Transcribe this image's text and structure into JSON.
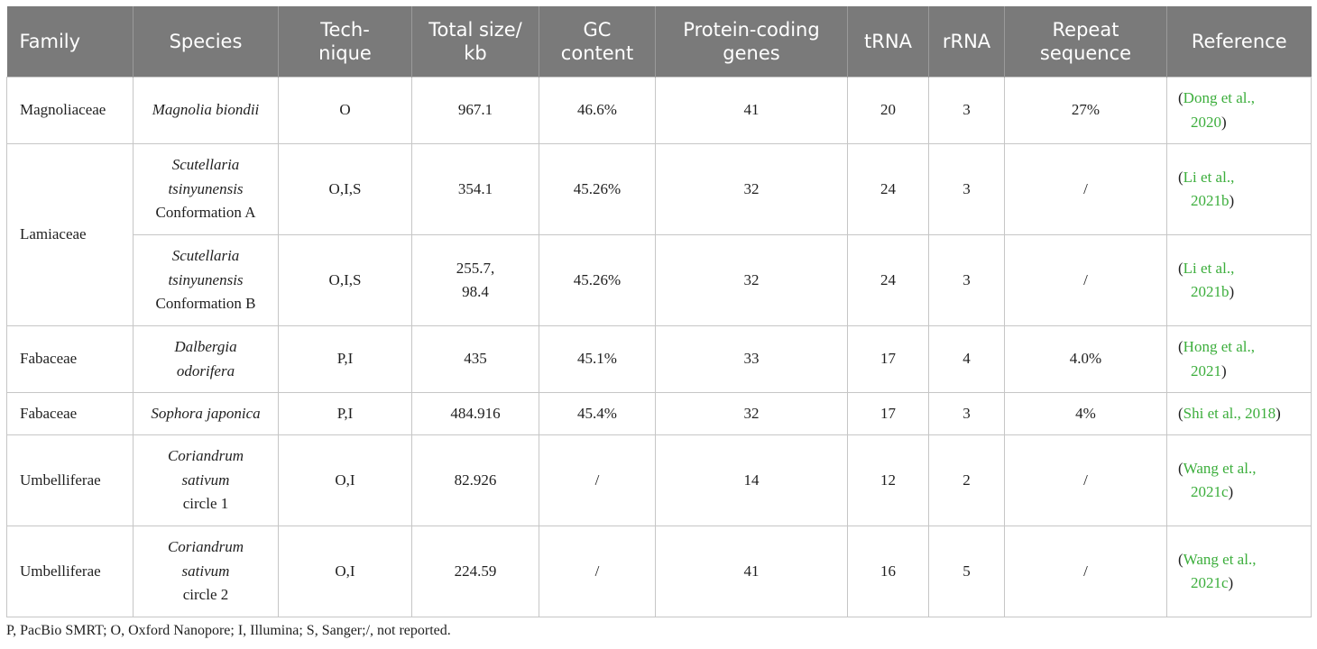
{
  "headers": {
    "family": "Family",
    "species": "Species",
    "technique": [
      "Tech-",
      "nique"
    ],
    "total_size": [
      "Total size/",
      "kb"
    ],
    "gc": [
      "GC",
      "content"
    ],
    "protein": [
      "Protein-coding",
      "genes"
    ],
    "trna": "tRNA",
    "rrna": "rRNA",
    "repeat": [
      "Repeat",
      "sequence"
    ],
    "reference": "Reference"
  },
  "rows": [
    {
      "family": "Magnoliaceae",
      "species_italic": [
        "Magnolia biondii"
      ],
      "species_plain": "",
      "technique": "O",
      "size": [
        "967.1"
      ],
      "gc": "46.6%",
      "protein": "41",
      "trna": "20",
      "rrna": "3",
      "repeat": "27%",
      "ref_open": "(",
      "ref_text": [
        "Dong et al.,",
        "2020"
      ],
      "ref_close": ")"
    },
    {
      "family": "Lamiaceae",
      "species_italic": [
        "Scutellaria",
        "tsinyunensis"
      ],
      "species_plain": "Conformation A",
      "technique": "O,I,S",
      "size": [
        "354.1"
      ],
      "gc": "45.26%",
      "protein": "32",
      "trna": "24",
      "rrna": "3",
      "repeat": "/",
      "ref_open": "(",
      "ref_text": [
        "Li et al.,",
        "2021b"
      ],
      "ref_close": ")"
    },
    {
      "family": "",
      "species_italic": [
        "Scutellaria",
        "tsinyunensis"
      ],
      "species_plain": "Conformation B",
      "technique": "O,I,S",
      "size": [
        "255.7,",
        "98.4"
      ],
      "gc": "45.26%",
      "protein": "32",
      "trna": "24",
      "rrna": "3",
      "repeat": "/",
      "ref_open": "(",
      "ref_text": [
        "Li et al.,",
        "2021b"
      ],
      "ref_close": ")"
    },
    {
      "family": "Fabaceae",
      "species_italic": [
        "Dalbergia",
        "odorifera"
      ],
      "species_plain": "",
      "technique": "P,I",
      "size": [
        "435"
      ],
      "gc": "45.1%",
      "protein": "33",
      "trna": "17",
      "rrna": "4",
      "repeat": "4.0%",
      "ref_open": "(",
      "ref_text": [
        "Hong et al.,",
        "2021"
      ],
      "ref_close": ")"
    },
    {
      "family": "Fabaceae",
      "species_italic": [
        "Sophora japonica"
      ],
      "species_plain": "",
      "technique": "P,I",
      "size": [
        "484.916"
      ],
      "gc": "45.4%",
      "protein": "32",
      "trna": "17",
      "rrna": "3",
      "repeat": "4%",
      "ref_open": "(",
      "ref_text": [
        "Shi et al., 2018"
      ],
      "ref_close": ")"
    },
    {
      "family": "Umbelliferae",
      "species_italic": [
        "Coriandrum",
        "sativum"
      ],
      "species_plain": "circle 1",
      "technique": "O,I",
      "size": [
        "82.926"
      ],
      "gc": "/",
      "protein": "14",
      "trna": "12",
      "rrna": "2",
      "repeat": "/",
      "ref_open": "(",
      "ref_text": [
        "Wang et al.,",
        "2021c"
      ],
      "ref_close": ")"
    },
    {
      "family": "Umbelliferae",
      "species_italic": [
        "Coriandrum",
        "sativum"
      ],
      "species_plain": "circle 2",
      "technique": "O,I",
      "size": [
        "224.59"
      ],
      "gc": "/",
      "protein": "41",
      "trna": "16",
      "rrna": "5",
      "repeat": "/",
      "ref_open": "(",
      "ref_text": [
        "Wang et al.,",
        "2021c"
      ],
      "ref_close": ")"
    }
  ],
  "footnote": "P, PacBio SMRT; O, Oxford Nanopore; I, Illumina; S, Sanger;/, not reported.",
  "colors": {
    "header_bg": "#7a7a7a",
    "link": "#3cae3c",
    "border": "#c6c6c6"
  }
}
